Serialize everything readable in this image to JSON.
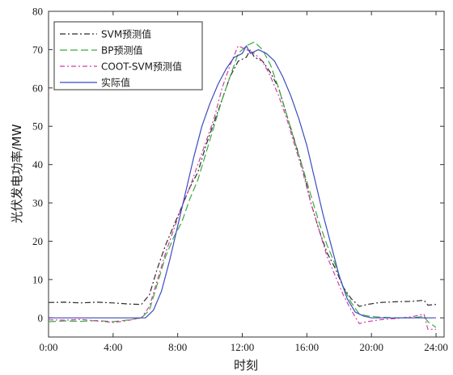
{
  "chart_data": {
    "type": "line",
    "xlabel": "时刻",
    "ylabel": "光伏发电功率/MW",
    "xlim": [
      0,
      24.5
    ],
    "ylim": [
      -5,
      80
    ],
    "xticks": [
      {
        "value": 0,
        "label": "0:00"
      },
      {
        "value": 4,
        "label": "4:00"
      },
      {
        "value": 8,
        "label": "8:00"
      },
      {
        "value": 12,
        "label": "12:00"
      },
      {
        "value": 16,
        "label": "16:00"
      },
      {
        "value": 20,
        "label": "20:00"
      },
      {
        "value": 24,
        "label": "24:00"
      }
    ],
    "yticks": [
      0,
      10,
      20,
      30,
      40,
      50,
      60,
      70,
      80
    ],
    "legend_position": "top-left",
    "series": [
      {
        "name": "SVM预测值",
        "color": "#2b2b2b",
        "dash": "7,3,2,3",
        "points": [
          [
            0,
            4
          ],
          [
            1,
            4.1
          ],
          [
            2,
            3.9
          ],
          [
            3,
            4.1
          ],
          [
            4,
            3.9
          ],
          [
            5,
            3.6
          ],
          [
            5.75,
            3.5
          ],
          [
            6.25,
            6
          ],
          [
            6.75,
            13
          ],
          [
            7.25,
            19
          ],
          [
            7.75,
            24
          ],
          [
            8.25,
            29
          ],
          [
            8.75,
            34
          ],
          [
            9.25,
            38
          ],
          [
            9.75,
            45
          ],
          [
            10.25,
            51
          ],
          [
            10.75,
            57
          ],
          [
            11.25,
            63
          ],
          [
            11.75,
            67
          ],
          [
            12.25,
            68
          ],
          [
            12.5,
            70
          ],
          [
            12.75,
            68
          ],
          [
            13.25,
            67
          ],
          [
            13.75,
            64
          ],
          [
            14.25,
            60
          ],
          [
            14.75,
            53
          ],
          [
            15.25,
            46
          ],
          [
            15.75,
            39
          ],
          [
            16.25,
            30
          ],
          [
            16.75,
            23
          ],
          [
            17.25,
            17
          ],
          [
            17.75,
            13
          ],
          [
            18.25,
            8
          ],
          [
            18.75,
            5
          ],
          [
            19.25,
            3
          ],
          [
            19.75,
            3.5
          ],
          [
            20.5,
            4
          ],
          [
            21.5,
            4.2
          ],
          [
            22.5,
            4.3
          ],
          [
            23.25,
            4.6
          ],
          [
            23.5,
            3.3
          ],
          [
            24,
            3.5
          ]
        ]
      },
      {
        "name": "BP预测值",
        "color": "#3aab3a",
        "dash": "9,4",
        "points": [
          [
            0,
            -1
          ],
          [
            1,
            -0.8
          ],
          [
            2,
            -0.9
          ],
          [
            3,
            -0.7
          ],
          [
            4,
            -1
          ],
          [
            5,
            -0.5
          ],
          [
            5.75,
            0
          ],
          [
            6.25,
            2
          ],
          [
            6.75,
            9
          ],
          [
            7.25,
            16
          ],
          [
            7.75,
            21
          ],
          [
            8.25,
            25
          ],
          [
            8.75,
            31
          ],
          [
            9.25,
            36
          ],
          [
            9.75,
            43
          ],
          [
            10.25,
            50
          ],
          [
            10.75,
            57
          ],
          [
            11.25,
            63
          ],
          [
            11.75,
            69
          ],
          [
            12.25,
            71
          ],
          [
            12.75,
            72
          ],
          [
            13.25,
            70
          ],
          [
            13.75,
            66
          ],
          [
            14.25,
            60
          ],
          [
            14.75,
            53
          ],
          [
            15.25,
            46
          ],
          [
            15.75,
            39
          ],
          [
            16.25,
            32
          ],
          [
            16.75,
            25
          ],
          [
            17.25,
            19
          ],
          [
            17.75,
            14
          ],
          [
            18.25,
            8
          ],
          [
            18.75,
            4
          ],
          [
            19.25,
            1
          ],
          [
            19.75,
            0.5
          ],
          [
            20.5,
            0.2
          ],
          [
            21.5,
            0
          ],
          [
            22.5,
            0
          ],
          [
            23.25,
            0.4
          ],
          [
            23.5,
            -1
          ],
          [
            24,
            -2.5
          ]
        ]
      },
      {
        "name": "COOT-SVM预测值",
        "color": "#d03fa6",
        "dash": "6,3,2,3",
        "points": [
          [
            0,
            -0.5
          ],
          [
            1,
            -0.6
          ],
          [
            2,
            -0.4
          ],
          [
            3,
            -0.8
          ],
          [
            4,
            -1.2
          ],
          [
            4.75,
            -0.8
          ],
          [
            5.75,
            0
          ],
          [
            6.25,
            3
          ],
          [
            6.75,
            10
          ],
          [
            7.25,
            17
          ],
          [
            7.75,
            23
          ],
          [
            8.25,
            29
          ],
          [
            8.75,
            34
          ],
          [
            9.25,
            40
          ],
          [
            9.75,
            46
          ],
          [
            10.25,
            52
          ],
          [
            10.75,
            60
          ],
          [
            11.25,
            66
          ],
          [
            11.75,
            71
          ],
          [
            12.25,
            70
          ],
          [
            12.75,
            69
          ],
          [
            13.25,
            67
          ],
          [
            13.75,
            63
          ],
          [
            14.25,
            58
          ],
          [
            14.75,
            52
          ],
          [
            15.25,
            45
          ],
          [
            15.75,
            38
          ],
          [
            16.25,
            30
          ],
          [
            16.75,
            23
          ],
          [
            17.25,
            16
          ],
          [
            17.75,
            11
          ],
          [
            18.25,
            6
          ],
          [
            18.75,
            2
          ],
          [
            19.25,
            -1.5
          ],
          [
            19.75,
            -1
          ],
          [
            20.5,
            -0.5
          ],
          [
            21.5,
            -0.2
          ],
          [
            22.5,
            0.3
          ],
          [
            23.25,
            1
          ],
          [
            23.5,
            -3
          ],
          [
            24,
            -3
          ]
        ]
      },
      {
        "name": "实际值",
        "color": "#3b4cc0",
        "dash": "",
        "points": [
          [
            0,
            0
          ],
          [
            1,
            0
          ],
          [
            2,
            0
          ],
          [
            3,
            0
          ],
          [
            4,
            0
          ],
          [
            5,
            0
          ],
          [
            6,
            0
          ],
          [
            6.5,
            2
          ],
          [
            7,
            7
          ],
          [
            7.5,
            15
          ],
          [
            8,
            24
          ],
          [
            8.5,
            33
          ],
          [
            9,
            42
          ],
          [
            9.5,
            50
          ],
          [
            10,
            56
          ],
          [
            10.5,
            61
          ],
          [
            11,
            65
          ],
          [
            11.5,
            68
          ],
          [
            12,
            69
          ],
          [
            12.25,
            71
          ],
          [
            12.5,
            69
          ],
          [
            13,
            70
          ],
          [
            13.5,
            69
          ],
          [
            14,
            67
          ],
          [
            14.5,
            63
          ],
          [
            15,
            58
          ],
          [
            15.5,
            52
          ],
          [
            16,
            45
          ],
          [
            16.5,
            36
          ],
          [
            17,
            27
          ],
          [
            17.5,
            19
          ],
          [
            18,
            11
          ],
          [
            18.5,
            5
          ],
          [
            19,
            1.5
          ],
          [
            19.5,
            0.5
          ],
          [
            20,
            0
          ],
          [
            21,
            0
          ],
          [
            22,
            0
          ],
          [
            23,
            0
          ],
          [
            24,
            0
          ]
        ]
      }
    ]
  }
}
